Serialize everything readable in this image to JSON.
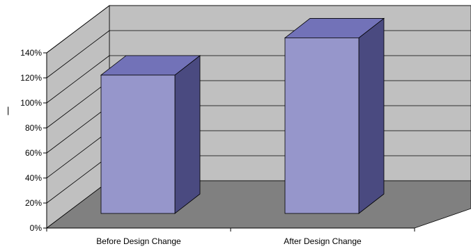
{
  "chart_data": {
    "type": "bar",
    "style": "3d-column",
    "categories": [
      "Before Design Change",
      "After Design Change"
    ],
    "values": [
      104,
      132
    ],
    "ylim": [
      0,
      140
    ],
    "y_ticks": [
      "0%",
      "20%",
      "40%",
      "60%",
      "80%",
      "100%",
      "120%",
      "140%"
    ],
    "ylabel": "|",
    "title": "",
    "xlabel": "",
    "grid": true,
    "legend": "none",
    "colors": {
      "bar_front": "#9696cb",
      "bar_top": "#7272b8",
      "bar_side": "#4a4a80",
      "wall": "#c0c0c0",
      "floor": "#808080"
    }
  }
}
